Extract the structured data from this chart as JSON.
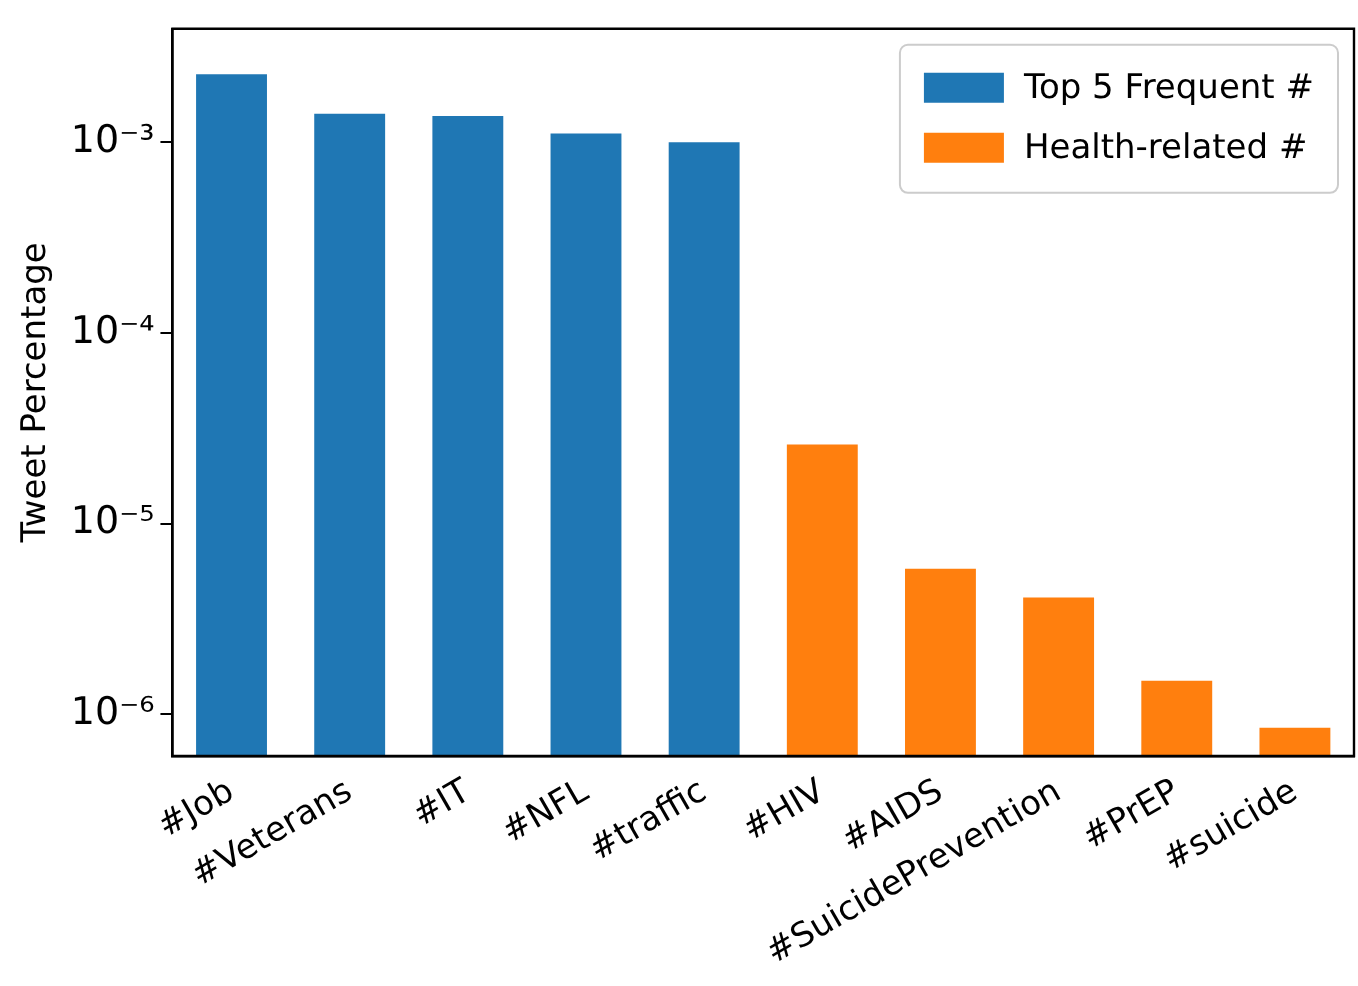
{
  "chart_data": {
    "type": "bar",
    "ylabel": "Tweet Percentage",
    "categories": [
      "#Job",
      "#Veterans",
      "#IT",
      "#NFL",
      "#traffic",
      "#HIV",
      "#AIDS",
      "#SuicidePrevention",
      "#PrEP",
      "#suicide"
    ],
    "series": [
      {
        "name": "Top 5 Frequent #",
        "color": "#1f77b4",
        "values": [
          0.00227,
          0.00141,
          0.00137,
          0.00111,
          0.001,
          null,
          null,
          null,
          null,
          null
        ]
      },
      {
        "name": "Health-related #",
        "color": "#ff7f0e",
        "values": [
          null,
          null,
          null,
          null,
          null,
          2.6e-05,
          5.8e-06,
          4.1e-06,
          1.5e-06,
          8.5e-07
        ]
      }
    ],
    "log": true,
    "ylim": [
      6.05e-07,
      0.00393
    ],
    "yticks": [
      {
        "value": 1e-06,
        "label": "10⁻⁶"
      },
      {
        "value": 1e-05,
        "label": "10⁻⁵"
      },
      {
        "value": 0.0001,
        "label": "10⁻⁴"
      },
      {
        "value": 0.001,
        "label": "10⁻³"
      }
    ],
    "grid": false,
    "legend": "top right"
  }
}
